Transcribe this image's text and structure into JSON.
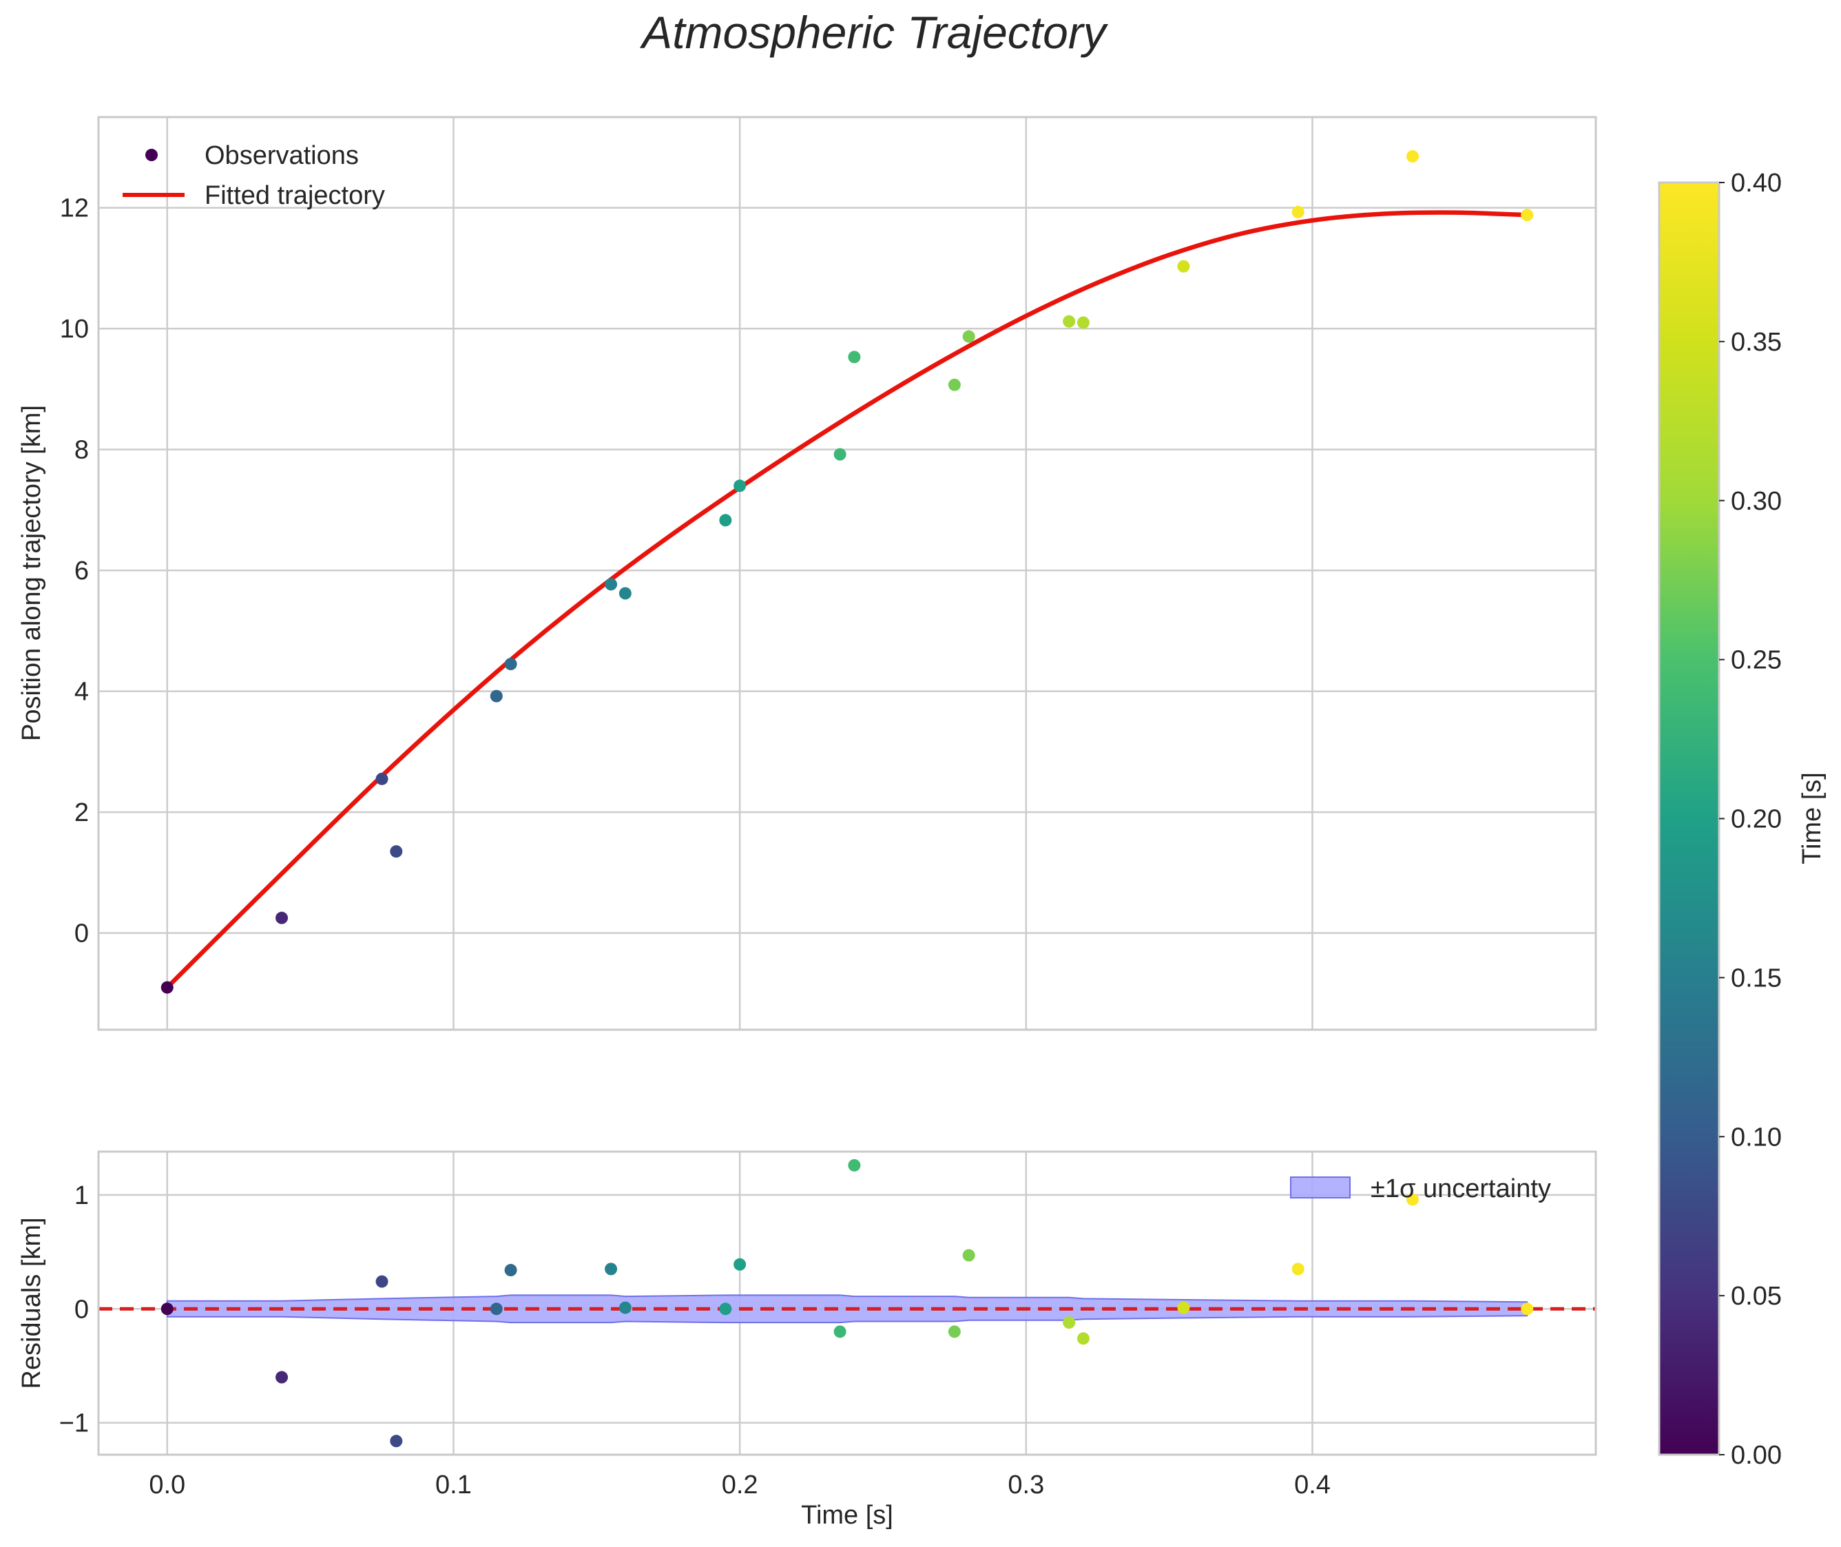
{
  "title": "Atmospheric Trajectory",
  "colors": {
    "fit": "#e8140c",
    "band_fill": "#aaaaff",
    "band_edge": "#6f6fe8",
    "grid": "#cccccc",
    "spine": "#c9c9c9",
    "zero_line": "#d71e1e"
  },
  "chart_data": [
    {
      "type": "scatter",
      "name": "main",
      "xlabel": "Time [s]",
      "ylabel": "Position along trajectory [km]",
      "xlim": [
        -0.024,
        0.499
      ],
      "ylim": [
        -1.6,
        13.5
      ],
      "xticks": [
        0.0,
        0.1,
        0.2,
        0.3,
        0.4
      ],
      "xtick_labels": [
        "0.0",
        "0.1",
        "0.2",
        "0.3",
        "0.4"
      ],
      "yticks": [
        0,
        2,
        4,
        6,
        8,
        10,
        12
      ],
      "ytick_labels": [
        "0",
        "2",
        "4",
        "6",
        "8",
        "10",
        "12"
      ],
      "grid": true,
      "legend_position": "top-left",
      "legend": [
        "Observations",
        "Fitted trajectory"
      ],
      "observations": {
        "x": [
          0.0,
          0.04,
          0.075,
          0.08,
          0.115,
          0.12,
          0.155,
          0.16,
          0.195,
          0.2,
          0.235,
          0.24,
          0.275,
          0.28,
          0.315,
          0.32,
          0.355,
          0.395,
          0.435,
          0.475
        ],
        "y": [
          -0.9,
          0.25,
          2.55,
          1.35,
          3.92,
          4.45,
          5.77,
          5.62,
          6.83,
          7.4,
          7.92,
          9.53,
          9.07,
          9.87,
          10.12,
          10.1,
          11.03,
          11.93,
          12.85,
          11.88
        ]
      },
      "fitted_trajectory": {
        "x": [
          0.0,
          0.025,
          0.05,
          0.075,
          0.1,
          0.125,
          0.15,
          0.175,
          0.2,
          0.225,
          0.25,
          0.275,
          0.3,
          0.325,
          0.35,
          0.375,
          0.4,
          0.425,
          0.45,
          0.475
        ],
        "y": [
          -0.9,
          0.28,
          1.45,
          2.6,
          3.69,
          4.72,
          5.67,
          6.55,
          7.37,
          8.15,
          8.89,
          9.58,
          10.21,
          10.76,
          11.22,
          11.57,
          11.79,
          11.9,
          11.92,
          11.88
        ]
      }
    },
    {
      "type": "scatter",
      "name": "residuals",
      "xlabel": "Time [s]",
      "ylabel": "Residuals [km]",
      "xlim": [
        -0.024,
        0.499
      ],
      "ylim": [
        -1.28,
        1.38
      ],
      "xticks": [
        0.0,
        0.1,
        0.2,
        0.3,
        0.4
      ],
      "xtick_labels": [
        "0.0",
        "0.1",
        "0.2",
        "0.3",
        "0.4"
      ],
      "yticks": [
        -1,
        0,
        1
      ],
      "ytick_labels": [
        "−1",
        "0",
        "1"
      ],
      "grid": true,
      "legend_position": "top-right",
      "legend": [
        "±1σ uncertainty"
      ],
      "residuals": {
        "x": [
          0.0,
          0.04,
          0.075,
          0.08,
          0.115,
          0.12,
          0.155,
          0.16,
          0.195,
          0.2,
          0.235,
          0.24,
          0.275,
          0.28,
          0.315,
          0.32,
          0.355,
          0.395,
          0.435,
          0.475
        ],
        "y": [
          0.0,
          -0.6,
          0.24,
          -1.16,
          0.0,
          0.34,
          0.35,
          0.01,
          0.0,
          0.39,
          -0.2,
          1.26,
          -0.2,
          0.47,
          -0.12,
          -0.26,
          0.01,
          0.35,
          0.96,
          0.0
        ]
      },
      "uncertainty_band": {
        "x": [
          0.0,
          0.04,
          0.075,
          0.115,
          0.12,
          0.155,
          0.16,
          0.195,
          0.2,
          0.235,
          0.24,
          0.275,
          0.28,
          0.315,
          0.32,
          0.355,
          0.395,
          0.435,
          0.475
        ],
        "sigma": [
          0.07,
          0.07,
          0.09,
          0.11,
          0.12,
          0.12,
          0.11,
          0.12,
          0.12,
          0.12,
          0.11,
          0.11,
          0.1,
          0.1,
          0.09,
          0.08,
          0.07,
          0.07,
          0.06
        ]
      }
    }
  ],
  "colorbar": {
    "label": "Time [s]",
    "range": [
      0.0,
      0.4
    ],
    "ticks": [
      0.0,
      0.05,
      0.1,
      0.15,
      0.2,
      0.25,
      0.3,
      0.35,
      0.4
    ],
    "tick_labels": [
      "0.00",
      "0.05",
      "0.10",
      "0.15",
      "0.20",
      "0.25",
      "0.30",
      "0.35",
      "0.40"
    ]
  }
}
